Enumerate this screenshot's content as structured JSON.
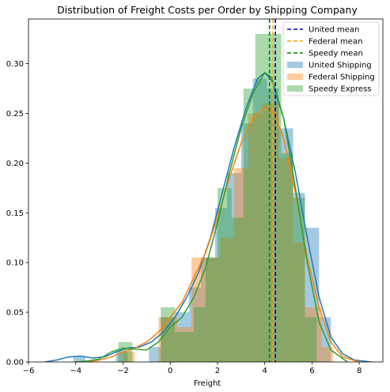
{
  "chart_data": {
    "type": "histogram",
    "title": "Distribution of Freight Costs per Order by Shipping Company",
    "xlabel": "Freight",
    "ylabel": "",
    "xlim": [
      -6,
      9
    ],
    "ylim": [
      0,
      0.345
    ],
    "xticks": [
      -6,
      -4,
      -2,
      0,
      2,
      4,
      6,
      8
    ],
    "yticks": [
      0.0,
      0.05,
      0.1,
      0.15,
      0.2,
      0.25,
      0.3
    ],
    "legend_position": "top-right",
    "series": [
      {
        "name": "United Shipping",
        "color": "#1f77b4",
        "mean": 4.45,
        "bins": [
          {
            "x0": -4.1,
            "x1": -3.6,
            "y": 0.005
          },
          {
            "x0": -2.3,
            "x1": -1.8,
            "y": 0.01
          },
          {
            "x0": -0.9,
            "x1": -0.4,
            "y": 0.015
          },
          {
            "x0": -0.4,
            "x1": 0.2,
            "y": 0.045
          },
          {
            "x0": 0.2,
            "x1": 0.8,
            "y": 0.05
          },
          {
            "x0": 0.8,
            "x1": 1.3,
            "y": 0.075
          },
          {
            "x0": 1.3,
            "x1": 1.9,
            "y": 0.105
          },
          {
            "x0": 1.9,
            "x1": 2.4,
            "y": 0.155
          },
          {
            "x0": 2.4,
            "x1": 3.0,
            "y": 0.19
          },
          {
            "x0": 3.0,
            "x1": 3.5,
            "y": 0.24
          },
          {
            "x0": 3.5,
            "x1": 4.1,
            "y": 0.285
          },
          {
            "x0": 4.1,
            "x1": 4.6,
            "y": 0.275
          },
          {
            "x0": 4.6,
            "x1": 5.2,
            "y": 0.235
          },
          {
            "x0": 5.2,
            "x1": 5.7,
            "y": 0.17
          },
          {
            "x0": 5.7,
            "x1": 6.3,
            "y": 0.135
          },
          {
            "x0": 6.3,
            "x1": 6.8,
            "y": 0.045
          }
        ],
        "kde": [
          [
            -5.3,
            0.0
          ],
          [
            -4.8,
            0.002
          ],
          [
            -4.3,
            0.005
          ],
          [
            -3.8,
            0.006
          ],
          [
            -3.3,
            0.004
          ],
          [
            -2.8,
            0.005
          ],
          [
            -2.3,
            0.01
          ],
          [
            -1.8,
            0.014
          ],
          [
            -1.3,
            0.015
          ],
          [
            -0.8,
            0.02
          ],
          [
            -0.3,
            0.03
          ],
          [
            0.2,
            0.045
          ],
          [
            0.7,
            0.065
          ],
          [
            1.2,
            0.09
          ],
          [
            1.7,
            0.125
          ],
          [
            2.2,
            0.17
          ],
          [
            2.7,
            0.215
          ],
          [
            3.2,
            0.255
          ],
          [
            3.7,
            0.285
          ],
          [
            4.0,
            0.291
          ],
          [
            4.3,
            0.283
          ],
          [
            4.8,
            0.245
          ],
          [
            5.3,
            0.19
          ],
          [
            5.8,
            0.125
          ],
          [
            6.3,
            0.065
          ],
          [
            6.8,
            0.025
          ],
          [
            7.3,
            0.008
          ],
          [
            7.8,
            0.002
          ],
          [
            8.5,
            0.0
          ]
        ]
      },
      {
        "name": "Federal Shipping",
        "color": "#ff7f0e",
        "mean": 4.35,
        "bins": [
          {
            "x0": -2.0,
            "x1": -1.5,
            "y": 0.01
          },
          {
            "x0": -0.5,
            "x1": 0.3,
            "y": 0.045
          },
          {
            "x0": 0.3,
            "x1": 0.9,
            "y": 0.035
          },
          {
            "x0": 0.9,
            "x1": 1.4,
            "y": 0.105
          },
          {
            "x0": 1.4,
            "x1": 2.1,
            "y": 0.105
          },
          {
            "x0": 2.1,
            "x1": 2.7,
            "y": 0.125
          },
          {
            "x0": 2.7,
            "x1": 3.3,
            "y": 0.195
          },
          {
            "x0": 3.3,
            "x1": 3.9,
            "y": 0.25
          },
          {
            "x0": 3.9,
            "x1": 4.6,
            "y": 0.26
          },
          {
            "x0": 4.6,
            "x1": 5.2,
            "y": 0.205
          },
          {
            "x0": 5.2,
            "x1": 5.7,
            "y": 0.12
          },
          {
            "x0": 5.7,
            "x1": 6.4,
            "y": 0.055
          },
          {
            "x0": 6.4,
            "x1": 6.9,
            "y": 0.015
          }
        ],
        "kde": [
          [
            -3.5,
            0.0
          ],
          [
            -3.0,
            0.002
          ],
          [
            -2.5,
            0.005
          ],
          [
            -2.0,
            0.01
          ],
          [
            -1.5,
            0.014
          ],
          [
            -1.0,
            0.02
          ],
          [
            -0.5,
            0.03
          ],
          [
            0.0,
            0.045
          ],
          [
            0.5,
            0.06
          ],
          [
            1.0,
            0.085
          ],
          [
            1.5,
            0.11
          ],
          [
            2.0,
            0.145
          ],
          [
            2.5,
            0.185
          ],
          [
            3.0,
            0.22
          ],
          [
            3.5,
            0.245
          ],
          [
            4.0,
            0.256
          ],
          [
            4.4,
            0.25
          ],
          [
            4.8,
            0.225
          ],
          [
            5.3,
            0.17
          ],
          [
            5.8,
            0.105
          ],
          [
            6.3,
            0.055
          ],
          [
            6.8,
            0.02
          ],
          [
            7.3,
            0.005
          ],
          [
            8.0,
            0.0
          ]
        ]
      },
      {
        "name": "Speedy Express",
        "color": "#2ca02c",
        "mean": 4.2,
        "bins": [
          {
            "x0": -2.2,
            "x1": -1.6,
            "y": 0.02
          },
          {
            "x0": -0.4,
            "x1": 0.2,
            "y": 0.055
          },
          {
            "x0": 0.2,
            "x1": 1.0,
            "y": 0.03
          },
          {
            "x0": 1.0,
            "x1": 1.5,
            "y": 0.055
          },
          {
            "x0": 1.5,
            "x1": 2.0,
            "y": 0.105
          },
          {
            "x0": 2.0,
            "x1": 2.6,
            "y": 0.175
          },
          {
            "x0": 2.6,
            "x1": 3.1,
            "y": 0.145
          },
          {
            "x0": 3.1,
            "x1": 3.6,
            "y": 0.275
          },
          {
            "x0": 3.6,
            "x1": 4.2,
            "y": 0.33
          },
          {
            "x0": 4.2,
            "x1": 4.7,
            "y": 0.33
          },
          {
            "x0": 4.7,
            "x1": 5.2,
            "y": 0.21
          },
          {
            "x0": 5.2,
            "x1": 5.7,
            "y": 0.165
          },
          {
            "x0": 5.7,
            "x1": 6.2,
            "y": 0.045
          }
        ],
        "kde": [
          [
            -4.0,
            0.0
          ],
          [
            -3.5,
            0.001
          ],
          [
            -3.0,
            0.003
          ],
          [
            -2.5,
            0.01
          ],
          [
            -2.0,
            0.014
          ],
          [
            -1.5,
            0.013
          ],
          [
            -1.0,
            0.012
          ],
          [
            -0.5,
            0.02
          ],
          [
            0.0,
            0.035
          ],
          [
            0.5,
            0.045
          ],
          [
            1.0,
            0.065
          ],
          [
            1.5,
            0.095
          ],
          [
            2.0,
            0.14
          ],
          [
            2.5,
            0.19
          ],
          [
            3.0,
            0.235
          ],
          [
            3.5,
            0.27
          ],
          [
            4.0,
            0.291
          ],
          [
            4.3,
            0.286
          ],
          [
            4.8,
            0.245
          ],
          [
            5.3,
            0.175
          ],
          [
            5.8,
            0.1
          ],
          [
            6.3,
            0.04
          ],
          [
            6.8,
            0.012
          ],
          [
            7.5,
            0.0
          ]
        ]
      }
    ],
    "mean_lines": [
      {
        "label": "United mean",
        "color": "#0000cc",
        "x": 4.45
      },
      {
        "label": "Federal mean",
        "color": "#ffa500",
        "x": 4.35
      },
      {
        "label": "Speedy mean",
        "color": "#008000",
        "x": 4.2
      }
    ]
  }
}
